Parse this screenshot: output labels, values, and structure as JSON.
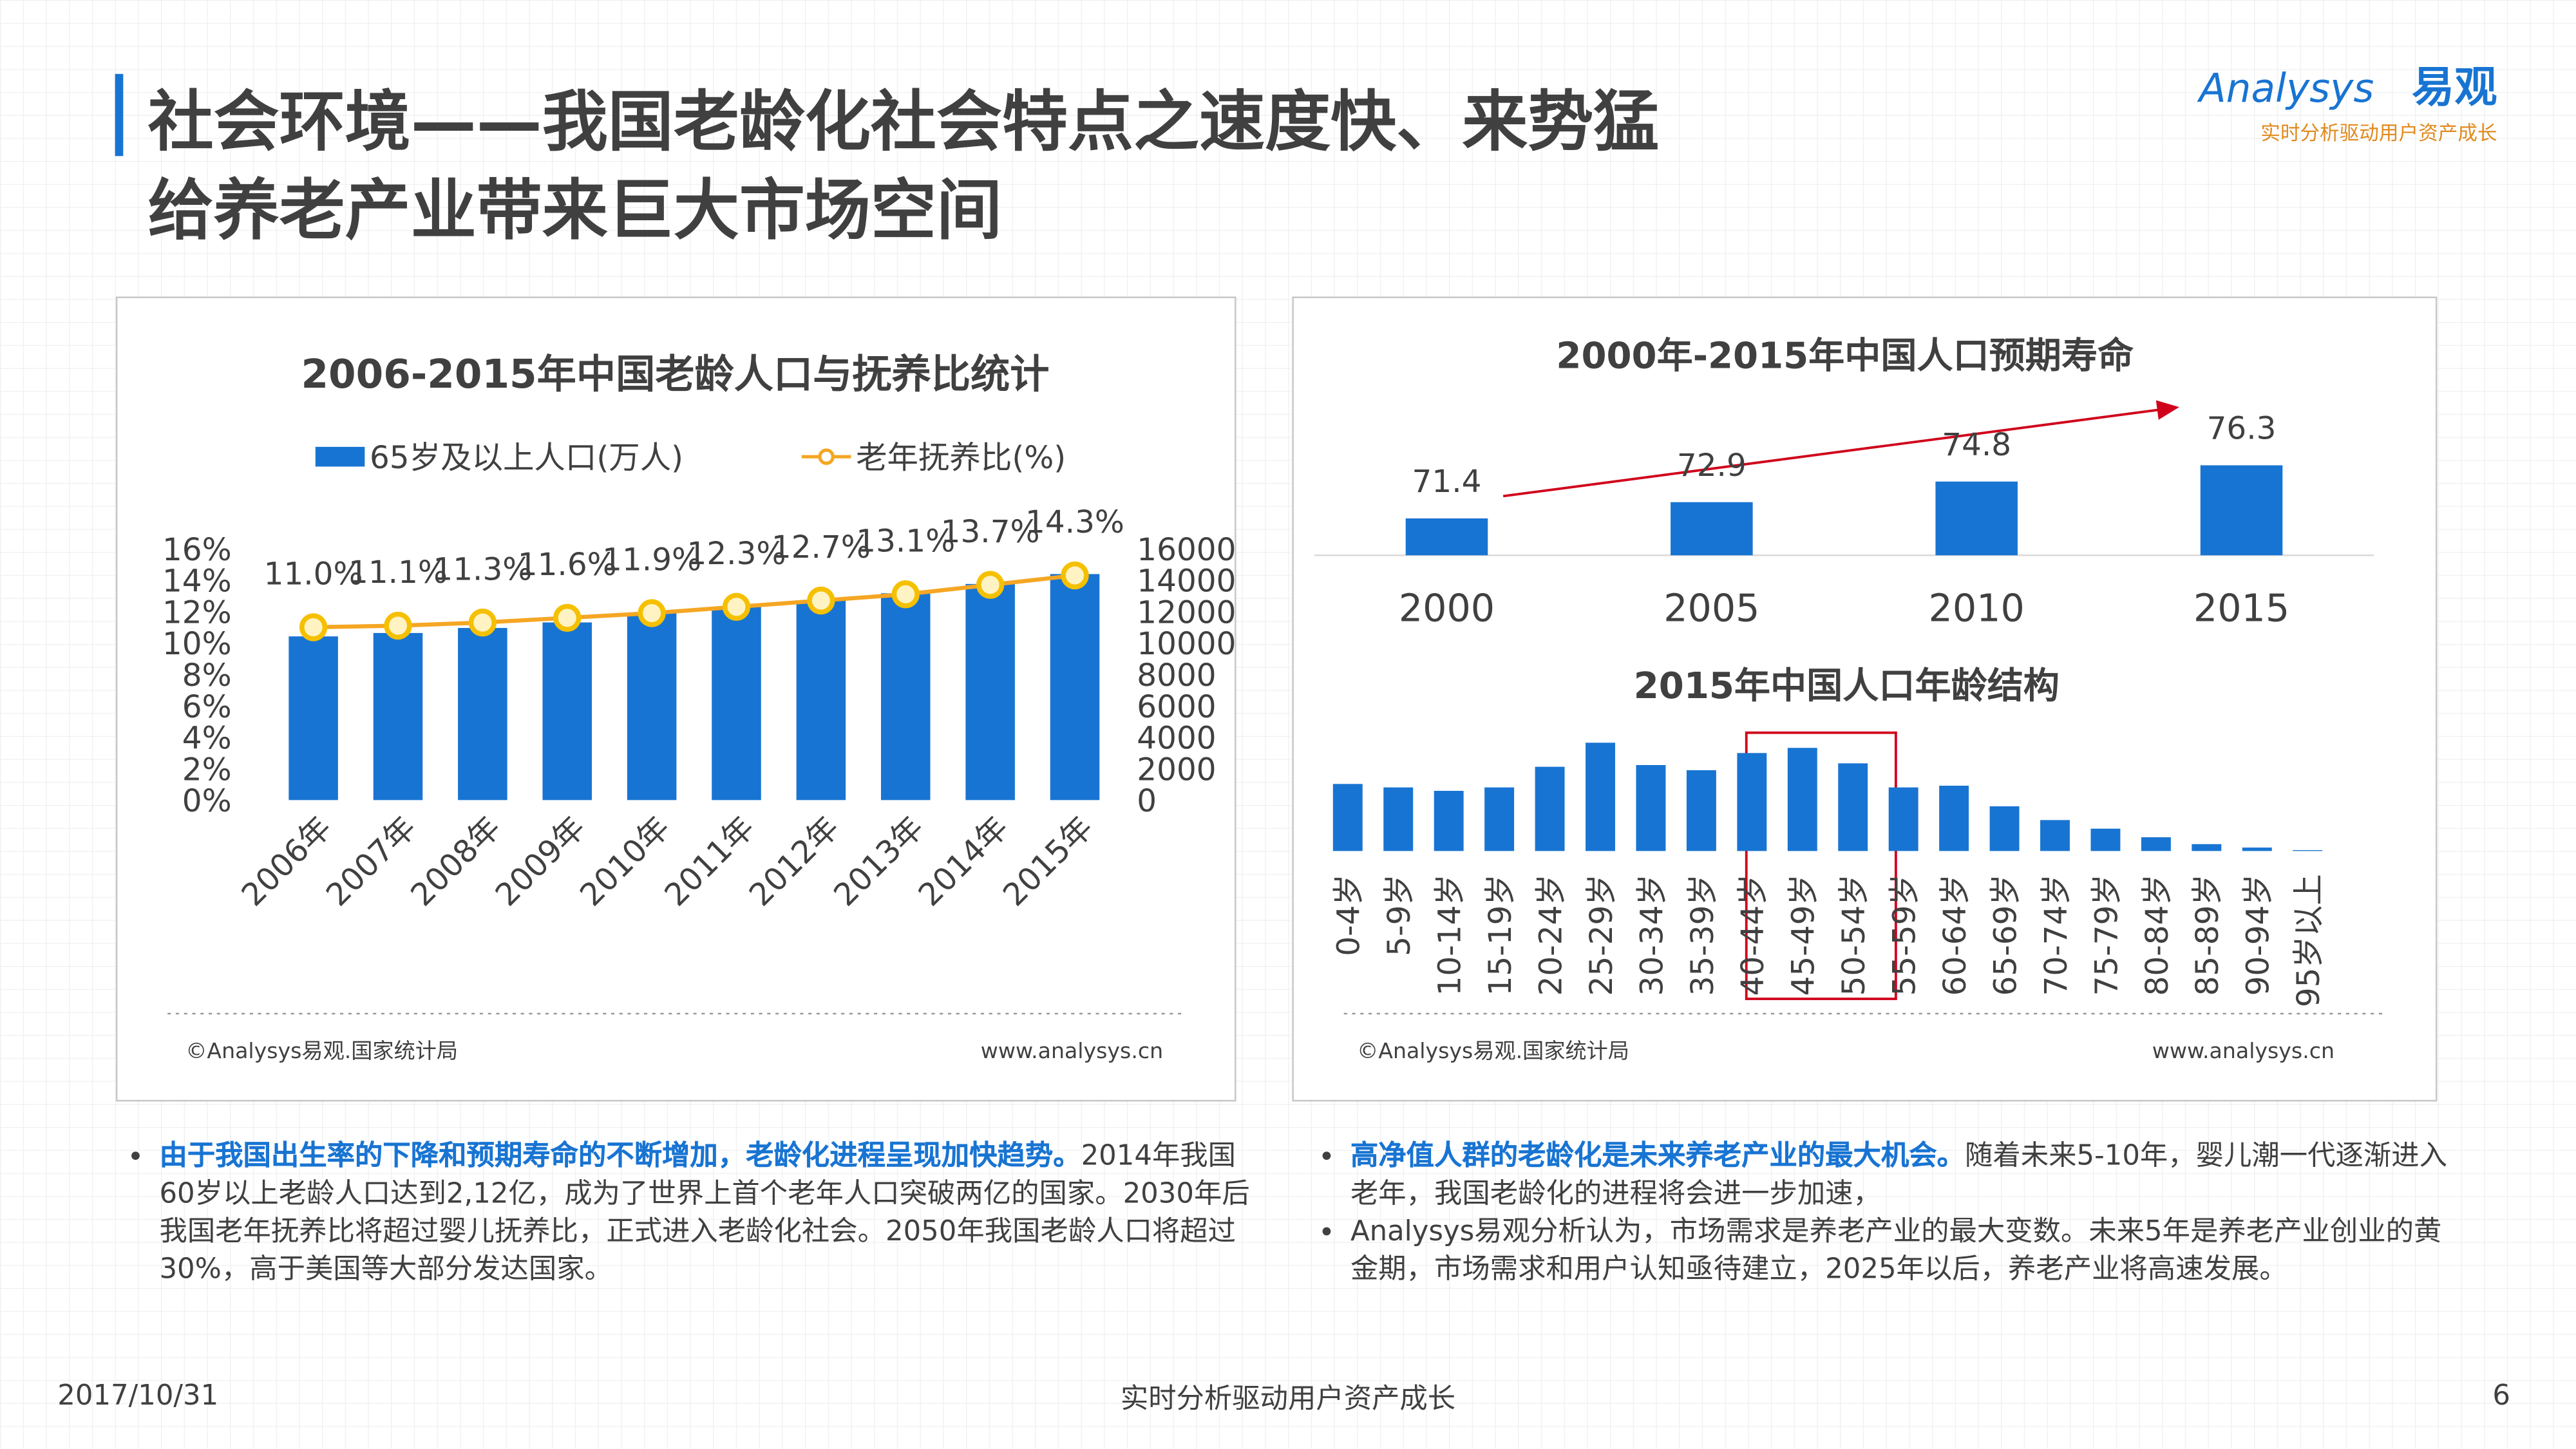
{
  "header": {
    "title_line1": "社会环境——我国老龄化社会特点之速度快、来势猛",
    "title_line2": "给养老产业带来巨大市场空间"
  },
  "logo": {
    "brand": "Analysys",
    "brand_cn": "易观",
    "tagline": "实时分析驱动用户资产成长"
  },
  "chart_data": [
    {
      "type": "bar_line",
      "title": "2006-2015年中国老龄人口与抚养比统计",
      "categories": [
        "2006年",
        "2007年",
        "2008年",
        "2009年",
        "2010年",
        "2011年",
        "2012年",
        "2013年",
        "2014年",
        "2015年"
      ],
      "series": [
        {
          "name": "65岁及以上人口(万人)",
          "type": "bar",
          "axis": "y2",
          "color": "#1874d2",
          "values": [
            10419,
            10636,
            10956,
            11307,
            11894,
            12288,
            12714,
            13161,
            13755,
            14386
          ]
        },
        {
          "name": "老年抚养比(%)",
          "type": "line",
          "axis": "y",
          "color": "#f5a623",
          "values": [
            11.0,
            11.1,
            11.3,
            11.6,
            11.9,
            12.3,
            12.7,
            13.1,
            13.7,
            14.3
          ],
          "value_labels": [
            "11.0%",
            "11.1%",
            "11.3%",
            "11.6%",
            "11.9%",
            "12.3%",
            "12.7%",
            "13.1%",
            "13.7%",
            "14.3%"
          ]
        }
      ],
      "ylim": [
        0,
        16
      ],
      "yticks": [
        {
          "value": 0,
          "label": "0%"
        },
        {
          "value": 2,
          "label": "2%"
        },
        {
          "value": 4,
          "label": "4%"
        },
        {
          "value": 6,
          "label": "6%"
        },
        {
          "value": 8,
          "label": "8%"
        },
        {
          "value": 10,
          "label": "10%"
        },
        {
          "value": 12,
          "label": "12%"
        },
        {
          "value": 14,
          "label": "14%"
        },
        {
          "value": 16,
          "label": "16%"
        }
      ],
      "y2lim": [
        0,
        16000
      ],
      "y2ticks": [
        0,
        2000,
        4000,
        6000,
        8000,
        10000,
        12000,
        14000,
        16000
      ],
      "legend": "top",
      "source": "©Analysys易观.国家统计局",
      "website": "www.analysys.cn"
    },
    {
      "type": "bar",
      "title": "2000年-2015年中国人口预期寿命",
      "categories": [
        "2000",
        "2005",
        "2010",
        "2015"
      ],
      "values": [
        71.4,
        72.9,
        74.8,
        76.3
      ],
      "color": "#1874d2",
      "ylim": [
        68,
        78
      ]
    },
    {
      "type": "bar",
      "title": "2015年中国人口年龄结构",
      "categories": [
        "0-4岁",
        "5-9岁",
        "10-14岁",
        "15-19岁",
        "20-24岁",
        "25-29岁",
        "30-34岁",
        "35-39岁",
        "40-44岁",
        "45-49岁",
        "50-54岁",
        "55-59岁",
        "60-64岁",
        "65-69岁",
        "70-74岁",
        "75-79岁",
        "80-84岁",
        "85-89岁",
        "90-94岁",
        "95岁以上"
      ],
      "values": [
        7800,
        7400,
        7000,
        7400,
        9800,
        12600,
        10000,
        9400,
        11400,
        12000,
        10200,
        7400,
        7600,
        5200,
        3600,
        2600,
        1600,
        800,
        400,
        100
      ],
      "color": "#1874d2",
      "ylim": [
        0,
        13000
      ],
      "source": "©Analysys易观.国家统计局",
      "website": "www.analysys.cn"
    }
  ],
  "notes": [
    {
      "items": [
        {
          "bold": "由于我国出生率的下降和预期寿命的不断增加，老龄化进程呈现加快趋势。",
          "text": "2014年我国60岁以上老龄人口达到2,12亿，成为了世界上首个老年人口突破两亿的国家。2030年后我国老年抚养比将超过婴儿抚养比，正式进入老龄化社会。2050年我国老龄人口将超过30%，高于美国等大部分发达国家。"
        }
      ]
    },
    {
      "items": [
        {
          "bold": "高净值人群的老龄化是未来养老产业的最大机会。",
          "text": "随着未来5-10年，婴儿潮一代逐渐进入老年，我国老龄化的进程将会进一步加速，"
        },
        {
          "text": "Analysys易观分析认为，市场需求是养老产业的最大变数。未来5年是养老产业创业的黄金期，市场需求和用户认知亟待建立，2025年以后，养老产业将高速发展。"
        }
      ]
    }
  ],
  "footer": {
    "date": "2017/10/31",
    "slogan": "实时分析驱动用户资产成长",
    "page": "6"
  }
}
